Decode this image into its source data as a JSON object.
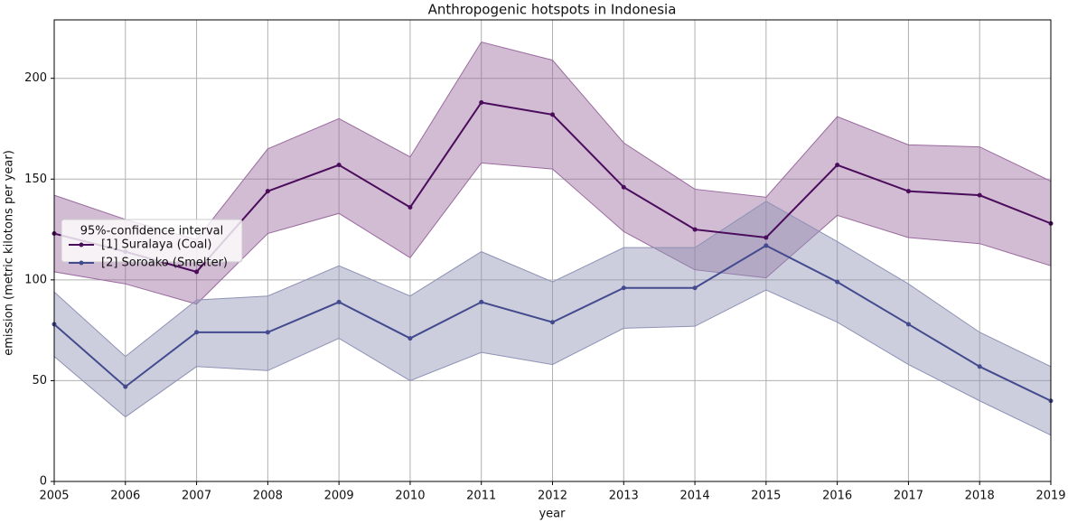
{
  "chart_data": {
    "type": "line",
    "title": "Anthropogenic hotspots in Indonesia",
    "xlabel": "year",
    "ylabel": "emission (metric kilotons per year)",
    "x": [
      2005,
      2006,
      2007,
      2008,
      2009,
      2010,
      2011,
      2012,
      2013,
      2014,
      2015,
      2016,
      2017,
      2018,
      2019
    ],
    "xlim": [
      2005,
      2019
    ],
    "xticks": [
      2005,
      2006,
      2007,
      2008,
      2009,
      2010,
      2011,
      2012,
      2013,
      2014,
      2015,
      2016,
      2017,
      2018,
      2019
    ],
    "ylim": [
      0,
      229
    ],
    "yticks": [
      0,
      50,
      100,
      150,
      200
    ],
    "grid": true,
    "legend_title": "95%-confidence interval",
    "legend_position": "left",
    "series": [
      {
        "name": "[1] Suralaya (Coal)",
        "color": "#4b0c5c",
        "band_color": "#9a6a9e",
        "values": [
          123,
          114,
          104,
          144,
          157,
          136,
          188,
          182,
          146,
          125,
          121,
          157,
          144,
          142,
          128
        ],
        "lower": [
          104,
          98,
          88,
          123,
          133,
          111,
          158,
          155,
          124,
          105,
          101,
          132,
          121,
          118,
          107
        ],
        "upper": [
          142,
          130,
          120,
          165,
          180,
          161,
          218,
          209,
          168,
          145,
          141,
          181,
          167,
          166,
          149
        ]
      },
      {
        "name": "[2] Soroako (Smelter)",
        "color": "#434a8e",
        "band_color": "#8e92b4",
        "values": [
          78,
          47,
          74,
          74,
          89,
          71,
          89,
          79,
          96,
          96,
          117,
          99,
          78,
          57,
          40
        ],
        "lower": [
          62,
          32,
          57,
          55,
          71,
          50,
          64,
          58,
          76,
          77,
          95,
          79,
          58,
          40,
          23
        ],
        "upper": [
          94,
          62,
          90,
          92,
          107,
          92,
          114,
          99,
          116,
          116,
          139,
          119,
          98,
          74,
          57
        ]
      }
    ]
  }
}
